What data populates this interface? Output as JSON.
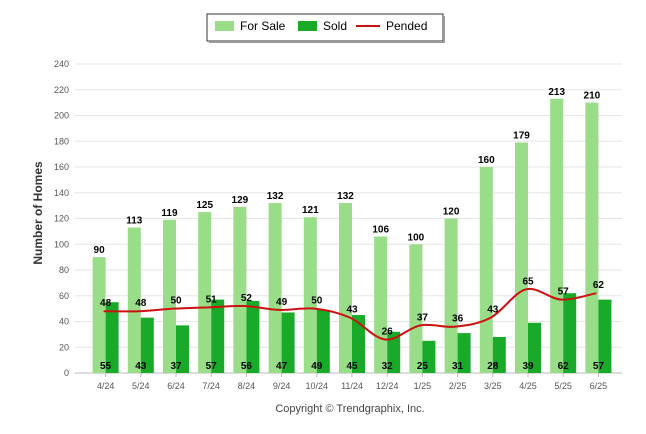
{
  "chart_data": {
    "type": "bar",
    "categories": [
      "4/24",
      "5/24",
      "6/24",
      "7/24",
      "8/24",
      "9/24",
      "10/24",
      "11/24",
      "12/24",
      "1/25",
      "2/25",
      "3/25",
      "4/25",
      "5/25",
      "6/25"
    ],
    "series": [
      {
        "name": "For Sale",
        "type": "bar",
        "color": "#99dd88",
        "values": [
          90,
          113,
          119,
          125,
          129,
          132,
          121,
          132,
          106,
          100,
          120,
          160,
          179,
          213,
          210
        ]
      },
      {
        "name": "Sold",
        "type": "bar",
        "color": "#1aaa2a",
        "values": [
          55,
          43,
          37,
          57,
          56,
          47,
          49,
          45,
          32,
          25,
          31,
          28,
          39,
          62,
          57
        ]
      },
      {
        "name": "Pended",
        "type": "line",
        "color": "#cc1111",
        "values": [
          48,
          48,
          50,
          51,
          52,
          49,
          50,
          43,
          26,
          37,
          36,
          43,
          65,
          57,
          62
        ]
      }
    ],
    "ylabel": "Number of Homes",
    "xlabel": "",
    "ylim": [
      0,
      240
    ],
    "yticks": [
      0,
      20,
      40,
      60,
      80,
      100,
      120,
      140,
      160,
      180,
      200,
      220,
      240
    ],
    "grid": true,
    "legend": "top-center"
  },
  "credit": "Copyright © Trendgraphix, Inc."
}
